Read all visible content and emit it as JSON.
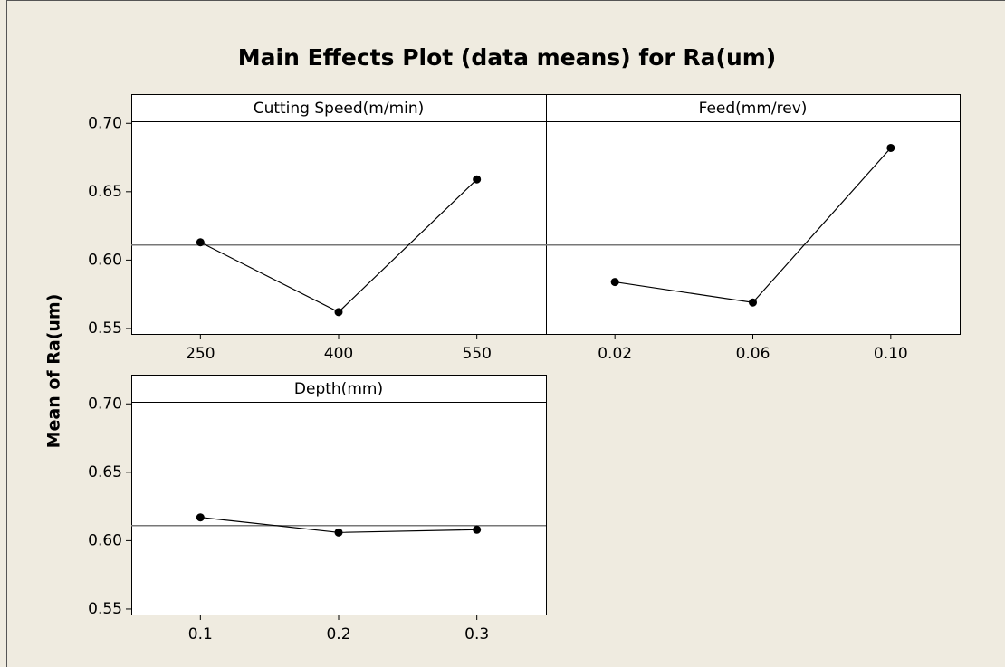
{
  "chart_data": {
    "type": "line",
    "title": "Main Effects Plot (data means) for Ra(um)",
    "ylabel": "Mean of Ra(um)",
    "ylim": [
      0.546,
      0.7015
    ],
    "yticks": [
      0.55,
      0.6,
      0.65,
      0.7
    ],
    "ytick_labels": [
      "0.55",
      "0.60",
      "0.65",
      "0.70"
    ],
    "reference": 0.611,
    "color": "#000000",
    "panels": [
      {
        "title": "Cutting Speed(m/min)",
        "categories": [
          "250",
          "400",
          "550"
        ],
        "values": [
          0.613,
          0.562,
          0.659
        ]
      },
      {
        "title": "Feed(mm/rev)",
        "categories": [
          "0.02",
          "0.06",
          "0.10"
        ],
        "values": [
          0.584,
          0.569,
          0.682
        ]
      },
      {
        "title": "Depth(mm)",
        "categories": [
          "0.1",
          "0.2",
          "0.3"
        ],
        "values": [
          0.617,
          0.606,
          0.608
        ]
      }
    ]
  }
}
